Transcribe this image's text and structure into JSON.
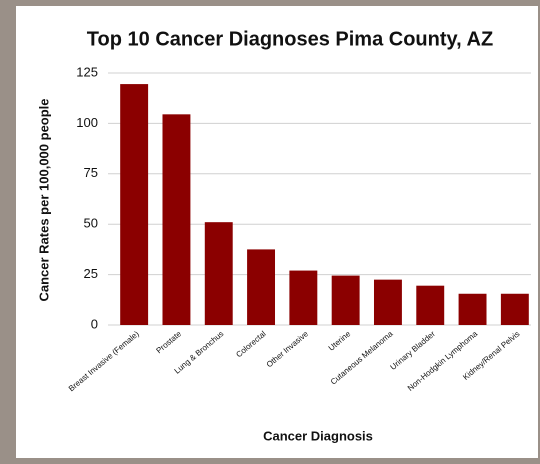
{
  "chart_data": {
    "type": "bar",
    "title": "Top 10 Cancer Diagnoses Pima County, AZ",
    "x_label": "Cancer Diagnosis",
    "y_label": "Cancer Rates per 100,000 people",
    "categories": [
      "Breast Invasive (Female)",
      "Prostate",
      "Lung & Bronchus",
      "Colorectal",
      "Other Invasive",
      "Uterine",
      "Cutaneous Melanoma",
      "Urinary Bladder",
      "Non-Hodgkin Lymphoma",
      "Kidney/Renal Pelvis"
    ],
    "values": [
      119.5,
      104.5,
      51,
      37.5,
      27,
      24.5,
      22.5,
      19.5,
      15.5,
      15.5
    ],
    "color": "#8b0000",
    "ylim": [
      0,
      125
    ],
    "yticks": [
      0,
      25,
      50,
      75,
      100,
      125
    ],
    "grid": true
  }
}
